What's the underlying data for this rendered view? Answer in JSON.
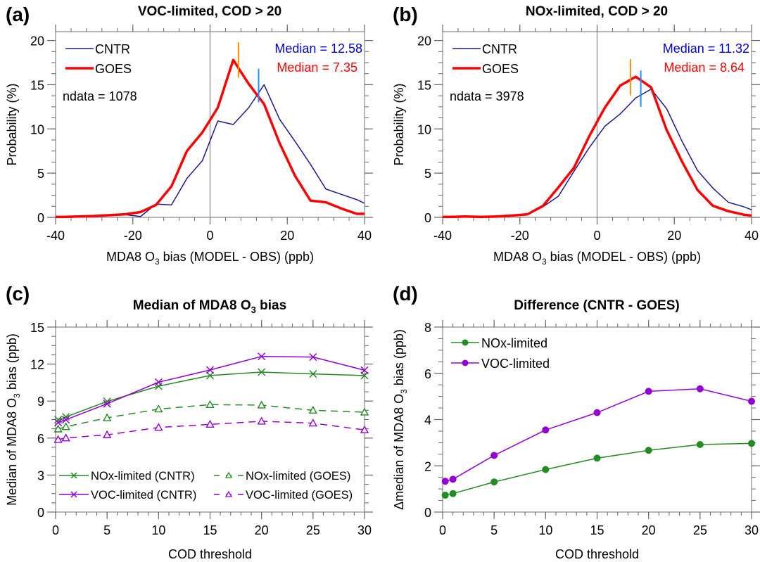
{
  "chart_data": [
    {
      "id": "a",
      "type": "line",
      "panel_letter": "(a)",
      "title": "VOC-limited, COD > 20",
      "xlabel_parts": [
        "MDA8 O",
        "3",
        " bias (MODEL - OBS) (ppb)"
      ],
      "ylabel": "Probability (%)",
      "xlim": [
        -40,
        40
      ],
      "ylim": [
        0,
        21
      ],
      "xticks": [
        -40,
        -20,
        0,
        20,
        40
      ],
      "xtick_labels": [
        "-40",
        "-20",
        "0",
        "20",
        "40"
      ],
      "yticks": [
        0,
        5,
        10,
        15,
        20
      ],
      "ytick_labels": [
        "0",
        "5",
        "10",
        "15",
        "20"
      ],
      "zero_line": true,
      "x": [
        -40,
        -38,
        -34,
        -30,
        -26,
        -22,
        -18,
        -14,
        -10,
        -6,
        -2,
        2,
        6,
        10,
        14,
        18,
        22,
        26,
        30,
        34,
        38,
        40
      ],
      "series": [
        {
          "name": "CNTR",
          "color": "#1a1a8c",
          "width": 1.5,
          "values": [
            0.05,
            0.05,
            0.05,
            0.1,
            0.2,
            0.3,
            0.1,
            1.5,
            1.4,
            4.4,
            6.4,
            10.9,
            10.5,
            12.4,
            15.0,
            11.1,
            8.6,
            6.0,
            3.2,
            2.6,
            2.0,
            1.6
          ]
        },
        {
          "name": "GOES",
          "color": "#ff0000",
          "width": 3.5,
          "values": [
            0.05,
            0.05,
            0.1,
            0.15,
            0.25,
            0.35,
            0.6,
            1.4,
            3.5,
            7.5,
            9.6,
            12.4,
            17.8,
            15.1,
            12.8,
            8.4,
            4.7,
            1.9,
            1.7,
            1.0,
            0.4,
            0.4
          ]
        }
      ],
      "median_markers": [
        {
          "series": "GOES",
          "x": 7.35,
          "y_range": [
            15.8,
            19.8
          ],
          "color": "#ff8c00"
        },
        {
          "series": "CNTR",
          "x": 12.58,
          "y_range": [
            13.0,
            16.8
          ],
          "color": "#1e90ff"
        }
      ],
      "legend": {
        "placement": "top-left",
        "entries": [
          "CNTR",
          "GOES"
        ]
      },
      "annotations": [
        {
          "text": "ndata = 1078",
          "color": "#000000",
          "placement": "left"
        },
        {
          "text": "Median = 12.58",
          "color": "#0000cc",
          "placement": "top-right"
        },
        {
          "text": "Median =  7.35",
          "color": "#ff0000",
          "placement": "top-right-second"
        }
      ]
    },
    {
      "id": "b",
      "type": "line",
      "panel_letter": "(b)",
      "title": "NOx-limited, COD > 20",
      "xlabel_parts": [
        "MDA8 O",
        "3",
        " bias (MODEL - OBS) (ppb)"
      ],
      "ylabel": "Probability (%)",
      "xlim": [
        -40,
        40
      ],
      "ylim": [
        0,
        21
      ],
      "xticks": [
        -40,
        -20,
        0,
        20,
        40
      ],
      "xtick_labels": [
        "-40",
        "-20",
        "0",
        "20",
        "40"
      ],
      "yticks": [
        0,
        5,
        10,
        15,
        20
      ],
      "ytick_labels": [
        "0",
        "5",
        "10",
        "15",
        "20"
      ],
      "zero_line": true,
      "x": [
        -40,
        -38,
        -34,
        -30,
        -26,
        -22,
        -18,
        -14,
        -10,
        -6,
        -2,
        2,
        6,
        10,
        14,
        18,
        22,
        26,
        30,
        34,
        38,
        40
      ],
      "series": [
        {
          "name": "CNTR",
          "color": "#1a1a8c",
          "width": 1.5,
          "values": [
            0.05,
            0.05,
            0.1,
            0.05,
            0.1,
            0.2,
            0.3,
            1.2,
            2.4,
            5.2,
            7.9,
            10.3,
            11.7,
            13.5,
            14.5,
            12.3,
            8.6,
            5.3,
            3.3,
            1.7,
            1.2,
            0.85
          ]
        },
        {
          "name": "GOES",
          "color": "#ff0000",
          "width": 3.5,
          "values": [
            0.05,
            0.05,
            0.1,
            0.05,
            0.1,
            0.2,
            0.35,
            1.3,
            3.4,
            5.6,
            9.2,
            12.4,
            14.9,
            15.9,
            14.7,
            9.9,
            6.3,
            3.1,
            1.3,
            0.7,
            0.3,
            0.2
          ]
        }
      ],
      "median_markers": [
        {
          "series": "GOES",
          "x": 8.64,
          "y_range": [
            13.8,
            17.9
          ],
          "color": "#ff8c00"
        },
        {
          "series": "CNTR",
          "x": 11.32,
          "y_range": [
            12.5,
            16.6
          ],
          "color": "#1e90ff"
        }
      ],
      "legend": {
        "placement": "top-left",
        "entries": [
          "CNTR",
          "GOES"
        ]
      },
      "annotations": [
        {
          "text": "ndata = 3978",
          "color": "#000000",
          "placement": "left"
        },
        {
          "text": "Median = 11.32",
          "color": "#0000cc",
          "placement": "top-right"
        },
        {
          "text": "Median =  8.64",
          "color": "#ff0000",
          "placement": "top-right-second"
        }
      ]
    },
    {
      "id": "c",
      "type": "line",
      "panel_letter": "(c)",
      "title_parts": [
        "Median of MDA8 O",
        "3",
        " bias"
      ],
      "xlabel": "COD threshold",
      "ylabel_parts": [
        "Median of MDA8 O",
        "3",
        " bias (ppb)"
      ],
      "xlim": [
        0,
        30
      ],
      "ylim": [
        0,
        15
      ],
      "xticks": [
        0,
        5,
        10,
        15,
        20,
        25,
        30
      ],
      "xtick_labels": [
        "0",
        "5",
        "10",
        "15",
        "20",
        "25",
        "30"
      ],
      "yticks": [
        0,
        3,
        6,
        9,
        12,
        15
      ],
      "ytick_labels": [
        "0",
        "3",
        "6",
        "9",
        "12",
        "15"
      ],
      "x": [
        0.25,
        1,
        5,
        10,
        15,
        20,
        25,
        30
      ],
      "series": [
        {
          "name": "NOx-limited (CNTR)",
          "color": "#228b22",
          "marker": "x",
          "dash": false,
          "values": [
            7.49,
            7.72,
            8.97,
            10.21,
            11.07,
            11.35,
            11.2,
            11.07
          ]
        },
        {
          "name": "VOC-limited (CNTR)",
          "color": "#9400d3",
          "marker": "x",
          "dash": false,
          "values": [
            7.26,
            7.49,
            8.78,
            10.53,
            11.52,
            12.62,
            12.57,
            11.5
          ]
        },
        {
          "name": "NOx-limited (GOES)",
          "color": "#228b22",
          "marker": "triangle",
          "dash": true,
          "values": [
            6.73,
            6.92,
            7.64,
            8.35,
            8.71,
            8.67,
            8.25,
            8.1
          ]
        },
        {
          "name": "VOC-limited (GOES)",
          "color": "#9400d3",
          "marker": "triangle",
          "dash": true,
          "values": [
            5.88,
            6.01,
            6.26,
            6.86,
            7.11,
            7.36,
            7.21,
            6.66
          ]
        }
      ],
      "legend": {
        "placement": "bottom",
        "columns": 2,
        "entries": [
          "NOx-limited (CNTR)",
          "NOx-limited (GOES)",
          "VOC-limited (CNTR)",
          "VOC-limited (GOES)"
        ]
      }
    },
    {
      "id": "d",
      "type": "line",
      "panel_letter": "(d)",
      "title": "Difference (CNTR - GOES)",
      "xlabel": "COD threshold",
      "ylabel_parts": [
        "Δmedian of MDA8 O",
        "3",
        " bias (ppb)"
      ],
      "xlim": [
        0,
        30
      ],
      "ylim": [
        0,
        8
      ],
      "xticks": [
        0,
        5,
        10,
        15,
        20,
        25,
        30
      ],
      "xtick_labels": [
        "0",
        "5",
        "10",
        "15",
        "20",
        "25",
        "30"
      ],
      "yticks": [
        0,
        2,
        4,
        6,
        8
      ],
      "ytick_labels": [
        "0",
        "2",
        "4",
        "6",
        "8"
      ],
      "x": [
        0.25,
        1,
        5,
        10,
        15,
        20,
        25,
        30
      ],
      "series": [
        {
          "name": "NOx-limited",
          "color": "#228b22",
          "marker": "dot",
          "values": [
            0.73,
            0.8,
            1.3,
            1.84,
            2.33,
            2.67,
            2.92,
            2.97
          ]
        },
        {
          "name": "VOC-limited",
          "color": "#9400d3",
          "marker": "dot",
          "values": [
            1.33,
            1.42,
            2.45,
            3.55,
            4.3,
            5.22,
            5.33,
            4.79
          ]
        }
      ],
      "legend": {
        "placement": "top-left",
        "entries": [
          "NOx-limited",
          "VOC-limited"
        ]
      }
    }
  ]
}
